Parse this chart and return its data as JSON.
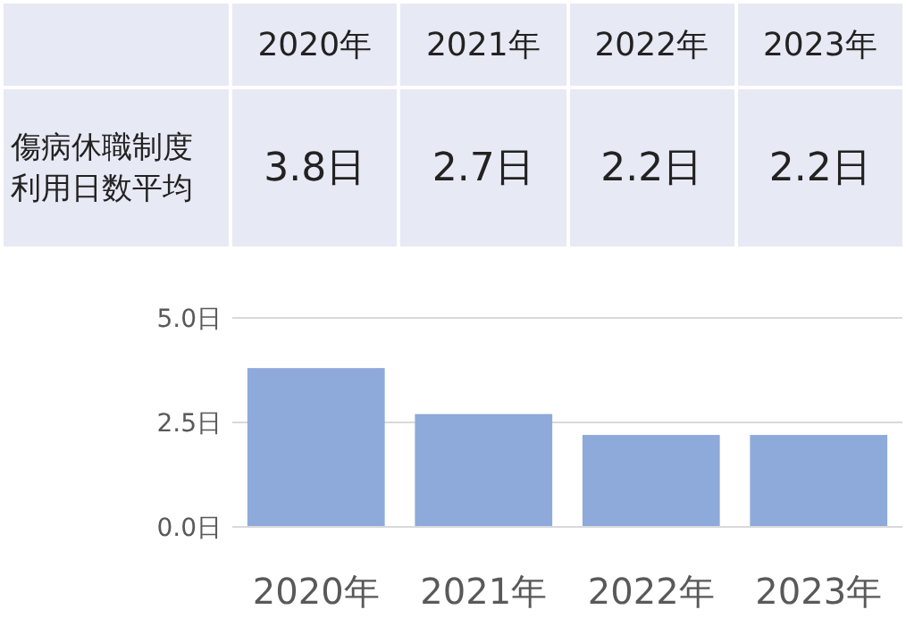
{
  "chart_data": {
    "type": "bar",
    "ylabel": "傷病休職制度利用日数平均",
    "categories": [
      "2020年",
      "2021年",
      "2022年",
      "2023年"
    ],
    "values": [
      3.8,
      2.7,
      2.2,
      2.2
    ],
    "value_labels": [
      "3.8日",
      "2.7日",
      "2.2日",
      "2.2日"
    ],
    "color": "#8eaadb",
    "ylim": [
      0,
      5
    ],
    "yticks": [
      {
        "value": 0,
        "label": "0.0日"
      },
      {
        "value": 2.5,
        "label": "2.5日"
      },
      {
        "value": 5,
        "label": "5.0日"
      }
    ],
    "grid": "y"
  }
}
